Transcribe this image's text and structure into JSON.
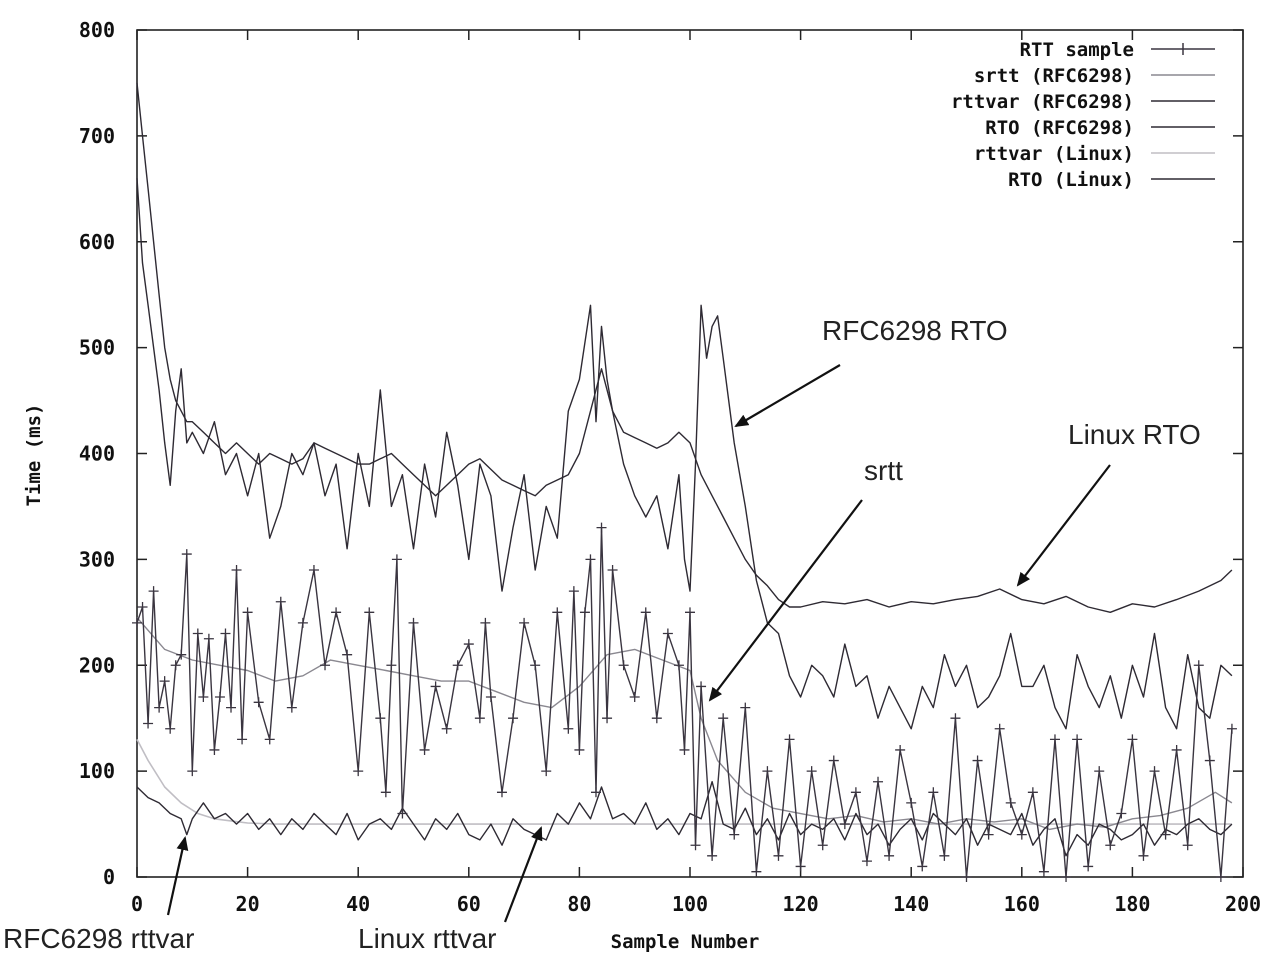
{
  "chart_data": {
    "type": "line",
    "title": "",
    "xlabel": "Sample Number",
    "ylabel": "Time (ms)",
    "xlim": [
      0,
      200
    ],
    "ylim": [
      0,
      800
    ],
    "xticks": [
      0,
      20,
      40,
      60,
      80,
      100,
      120,
      140,
      160,
      180,
      200
    ],
    "yticks": [
      0,
      100,
      200,
      300,
      400,
      500,
      600,
      700,
      800
    ],
    "grid": false,
    "legend_position": "top-right",
    "series": [
      {
        "name": "RTT sample",
        "style": "line-plus",
        "color": "#3a3540",
        "x": [
          0,
          1,
          2,
          3,
          4,
          5,
          6,
          7,
          8,
          9,
          10,
          11,
          12,
          13,
          14,
          15,
          16,
          17,
          18,
          19,
          20,
          22,
          24,
          26,
          28,
          30,
          32,
          34,
          36,
          38,
          40,
          42,
          44,
          45,
          46,
          47,
          48,
          50,
          52,
          54,
          56,
          58,
          60,
          62,
          63,
          64,
          66,
          68,
          70,
          72,
          74,
          76,
          78,
          79,
          80,
          81,
          82,
          83,
          84,
          85,
          86,
          88,
          90,
          92,
          94,
          96,
          98,
          99,
          100,
          101,
          102,
          104,
          106,
          108,
          110,
          112,
          114,
          116,
          118,
          120,
          122,
          124,
          126,
          128,
          130,
          132,
          134,
          136,
          138,
          140,
          142,
          144,
          146,
          148,
          150,
          152,
          154,
          156,
          158,
          160,
          162,
          164,
          166,
          168,
          170,
          172,
          174,
          176,
          178,
          180,
          182,
          184,
          186,
          188,
          190,
          192,
          194,
          196,
          198
        ],
        "y": [
          240,
          255,
          145,
          270,
          160,
          185,
          140,
          200,
          210,
          305,
          100,
          230,
          170,
          225,
          120,
          170,
          230,
          160,
          290,
          130,
          250,
          165,
          130,
          260,
          160,
          240,
          290,
          200,
          250,
          210,
          100,
          250,
          150,
          80,
          200,
          300,
          60,
          240,
          120,
          180,
          140,
          200,
          220,
          150,
          240,
          170,
          80,
          150,
          240,
          200,
          100,
          250,
          140,
          270,
          120,
          250,
          300,
          80,
          330,
          150,
          290,
          200,
          170,
          250,
          150,
          230,
          200,
          120,
          250,
          30,
          180,
          20,
          150,
          40,
          160,
          5,
          100,
          20,
          130,
          10,
          100,
          30,
          110,
          50,
          80,
          15,
          90,
          20,
          120,
          70,
          10,
          80,
          20,
          150,
          0,
          110,
          40,
          140,
          70,
          40,
          80,
          5,
          130,
          0,
          130,
          10,
          100,
          30,
          60,
          130,
          20,
          100,
          40,
          120,
          30,
          200,
          110,
          0,
          140
        ]
      },
      {
        "name": "srtt (RFC6298)",
        "style": "line",
        "color": "#8a8890",
        "x": [
          0,
          5,
          10,
          15,
          20,
          25,
          30,
          35,
          40,
          45,
          50,
          55,
          60,
          65,
          70,
          75,
          80,
          85,
          90,
          95,
          100,
          102,
          105,
          110,
          115,
          120,
          125,
          130,
          135,
          140,
          145,
          150,
          155,
          160,
          165,
          170,
          175,
          180,
          185,
          190,
          195,
          198
        ],
        "y": [
          245,
          215,
          205,
          200,
          195,
          185,
          190,
          205,
          200,
          195,
          190,
          185,
          185,
          175,
          165,
          160,
          180,
          210,
          215,
          205,
          195,
          150,
          110,
          80,
          65,
          60,
          55,
          58,
          52,
          55,
          50,
          55,
          52,
          55,
          45,
          50,
          47,
          55,
          58,
          65,
          80,
          70
        ]
      },
      {
        "name": "rttvar (RFC6298)",
        "style": "line",
        "color": "#2e2a33",
        "x": [
          0,
          2,
          4,
          6,
          8,
          9,
          10,
          12,
          14,
          16,
          18,
          20,
          22,
          24,
          26,
          28,
          30,
          32,
          34,
          36,
          38,
          40,
          42,
          44,
          46,
          48,
          50,
          52,
          54,
          56,
          58,
          60,
          62,
          64,
          66,
          68,
          70,
          72,
          74,
          76,
          78,
          80,
          82,
          84,
          86,
          88,
          90,
          92,
          94,
          96,
          98,
          100,
          102,
          104,
          106,
          108,
          110,
          112,
          114,
          116,
          118,
          120,
          122,
          124,
          126,
          128,
          130,
          132,
          134,
          136,
          138,
          140,
          142,
          144,
          146,
          148,
          150,
          152,
          154,
          156,
          158,
          160,
          162,
          164,
          166,
          168,
          170,
          172,
          174,
          176,
          178,
          180,
          182,
          184,
          186,
          188,
          190,
          192,
          194,
          196,
          198
        ],
        "y": [
          85,
          75,
          70,
          60,
          55,
          40,
          55,
          70,
          55,
          60,
          50,
          60,
          45,
          55,
          40,
          55,
          45,
          60,
          50,
          40,
          60,
          35,
          50,
          55,
          45,
          65,
          50,
          35,
          55,
          45,
          60,
          40,
          35,
          50,
          30,
          55,
          45,
          40,
          35,
          60,
          50,
          70,
          55,
          85,
          55,
          60,
          50,
          70,
          45,
          55,
          40,
          60,
          55,
          90,
          50,
          45,
          65,
          40,
          55,
          35,
          60,
          40,
          50,
          45,
          55,
          35,
          60,
          40,
          50,
          30,
          45,
          55,
          35,
          60,
          50,
          40,
          55,
          30,
          50,
          45,
          40,
          60,
          30,
          45,
          55,
          20,
          40,
          30,
          50,
          45,
          35,
          40,
          50,
          30,
          45,
          40,
          50,
          55,
          45,
          40,
          50
        ]
      },
      {
        "name": "RTO (RFC6298)",
        "style": "line",
        "color": "#2e2a33",
        "x": [
          0,
          1,
          2,
          3,
          4,
          5,
          6,
          7,
          8,
          9,
          10,
          12,
          14,
          16,
          18,
          20,
          22,
          24,
          26,
          28,
          30,
          32,
          34,
          36,
          38,
          40,
          42,
          44,
          46,
          48,
          50,
          52,
          54,
          56,
          58,
          60,
          62,
          64,
          66,
          68,
          70,
          72,
          74,
          76,
          78,
          80,
          82,
          83,
          84,
          85,
          86,
          88,
          90,
          92,
          94,
          96,
          98,
          99,
          100,
          101,
          102,
          103,
          104,
          105,
          106,
          108,
          110,
          112,
          114,
          116,
          118,
          120,
          122,
          124,
          126,
          128,
          130,
          132,
          134,
          136,
          138,
          140,
          142,
          144,
          146,
          148,
          150,
          152,
          154,
          156,
          158,
          160,
          162,
          164,
          166,
          168,
          170,
          172,
          174,
          176,
          178,
          180,
          182,
          184,
          186,
          188,
          190,
          192,
          194,
          196,
          198
        ],
        "y": [
          660,
          580,
          540,
          500,
          460,
          410,
          370,
          440,
          480,
          410,
          420,
          400,
          430,
          380,
          400,
          360,
          400,
          320,
          350,
          400,
          380,
          410,
          360,
          390,
          310,
          400,
          350,
          460,
          350,
          380,
          310,
          390,
          340,
          420,
          370,
          300,
          390,
          360,
          270,
          330,
          380,
          290,
          350,
          320,
          440,
          470,
          540,
          430,
          520,
          470,
          440,
          390,
          360,
          340,
          360,
          310,
          380,
          300,
          270,
          390,
          540,
          490,
          520,
          530,
          490,
          410,
          350,
          280,
          240,
          230,
          190,
          170,
          200,
          190,
          170,
          220,
          180,
          190,
          150,
          180,
          160,
          140,
          180,
          160,
          210,
          180,
          200,
          160,
          170,
          190,
          230,
          180,
          180,
          200,
          160,
          140,
          210,
          180,
          160,
          190,
          150,
          200,
          170,
          230,
          160,
          140,
          210,
          160,
          150,
          200,
          190
        ]
      },
      {
        "name": "rttvar (Linux)",
        "style": "line",
        "color": "#c0bec4",
        "x": [
          0,
          2,
          5,
          8,
          11,
          14,
          17,
          20,
          25,
          30,
          40,
          50,
          60,
          70,
          80,
          90,
          100,
          110,
          120,
          130,
          140,
          150,
          160,
          170,
          180,
          190,
          198
        ],
        "y": [
          130,
          110,
          85,
          70,
          60,
          55,
          53,
          51,
          50,
          50,
          50,
          50,
          50,
          50,
          50,
          50,
          50,
          50,
          50,
          50,
          50,
          50,
          50,
          50,
          50,
          50,
          50
        ]
      },
      {
        "name": "RTO (Linux)",
        "style": "line",
        "color": "#2e2a33",
        "x": [
          0,
          1,
          2,
          3,
          4,
          5,
          6,
          7,
          8,
          9,
          10,
          12,
          14,
          16,
          18,
          20,
          22,
          24,
          26,
          28,
          30,
          32,
          34,
          36,
          38,
          40,
          42,
          44,
          46,
          48,
          50,
          52,
          54,
          56,
          58,
          60,
          62,
          64,
          66,
          68,
          70,
          72,
          74,
          76,
          78,
          80,
          82,
          84,
          86,
          88,
          90,
          92,
          94,
          96,
          98,
          100,
          102,
          104,
          106,
          108,
          110,
          112,
          114,
          116,
          118,
          120,
          124,
          128,
          132,
          136,
          140,
          144,
          148,
          152,
          156,
          160,
          164,
          168,
          172,
          176,
          180,
          184,
          188,
          192,
          196,
          198
        ],
        "y": [
          750,
          700,
          650,
          600,
          550,
          500,
          470,
          450,
          440,
          430,
          430,
          420,
          410,
          400,
          410,
          400,
          390,
          400,
          395,
          390,
          395,
          410,
          405,
          400,
          395,
          390,
          390,
          395,
          400,
          390,
          380,
          370,
          360,
          370,
          380,
          390,
          395,
          385,
          375,
          370,
          365,
          360,
          370,
          375,
          380,
          400,
          440,
          480,
          440,
          420,
          415,
          410,
          405,
          410,
          420,
          410,
          380,
          360,
          340,
          320,
          300,
          285,
          275,
          262,
          255,
          255,
          260,
          258,
          262,
          255,
          260,
          258,
          262,
          265,
          272,
          262,
          258,
          265,
          255,
          250,
          258,
          255,
          262,
          270,
          280,
          290
        ]
      }
    ],
    "annotations": [
      {
        "text": "RFC6298 RTO"
      },
      {
        "text": "Linux RTO"
      },
      {
        "text": "srtt"
      },
      {
        "text": "RFC6298 rttvar"
      },
      {
        "text": "Linux rttvar"
      }
    ]
  }
}
